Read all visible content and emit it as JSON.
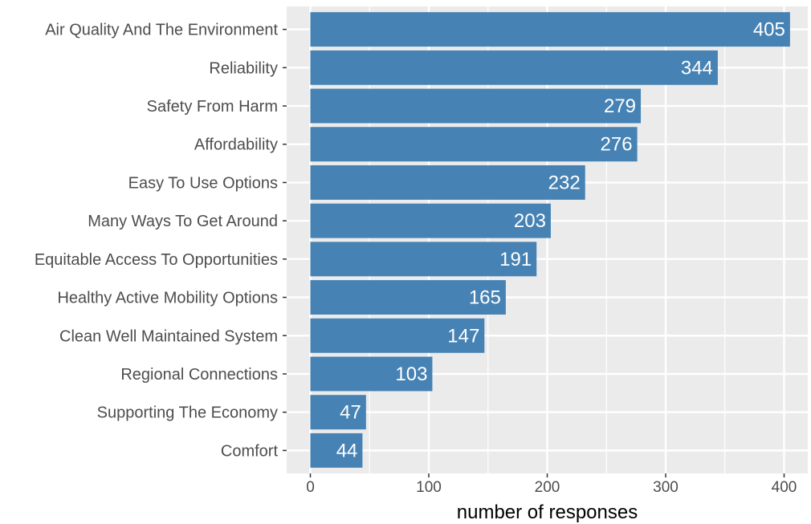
{
  "chart_data": {
    "type": "bar",
    "orientation": "horizontal",
    "categories": [
      "Air Quality And The Environment",
      "Reliability",
      "Safety From Harm",
      "Affordability",
      "Easy To Use Options",
      "Many Ways To Get Around",
      "Equitable Access To Opportunities",
      "Healthy Active Mobility Options",
      "Clean Well Maintained System",
      "Regional Connections",
      "Supporting The Economy",
      "Comfort"
    ],
    "values": [
      405,
      344,
      279,
      276,
      232,
      203,
      191,
      165,
      147,
      103,
      47,
      44
    ],
    "xlabel": "number of responses",
    "ylabel": "",
    "title": "",
    "xlim": [
      -20,
      420
    ],
    "xticks": [
      0,
      100,
      200,
      300,
      400
    ],
    "grid": true,
    "bar_color": "#4682b4",
    "panel_color": "#ebebeb",
    "grid_color": "#ffffff"
  }
}
